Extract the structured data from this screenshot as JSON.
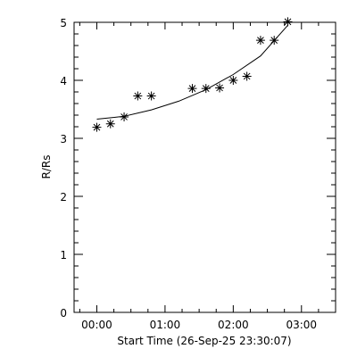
{
  "chart_data": {
    "type": "scatter",
    "xlabel": "Start Time (26-Sep-25 23:30:07)",
    "ylabel": "R/Rs",
    "x_unit": "minutes",
    "xlim": [
      -20,
      210
    ],
    "ylim": [
      0,
      5
    ],
    "x_ticks": [
      {
        "value": 0,
        "label": "00:00"
      },
      {
        "value": 60,
        "label": "01:00"
      },
      {
        "value": 120,
        "label": "02:00"
      },
      {
        "value": 180,
        "label": "03:00"
      }
    ],
    "y_ticks": [
      {
        "value": 0,
        "label": "0"
      },
      {
        "value": 1,
        "label": "1"
      },
      {
        "value": 2,
        "label": "2"
      },
      {
        "value": 3,
        "label": "3"
      },
      {
        "value": 4,
        "label": "4"
      },
      {
        "value": 5,
        "label": "5"
      }
    ],
    "grid": false,
    "series": [
      {
        "marker": "asterisk",
        "points": [
          {
            "x": 0,
            "y": 3.19
          },
          {
            "x": 12,
            "y": 3.25
          },
          {
            "x": 24,
            "y": 3.37
          },
          {
            "x": 36,
            "y": 3.73
          },
          {
            "x": 48,
            "y": 3.73
          },
          {
            "x": 84,
            "y": 3.86
          },
          {
            "x": 96,
            "y": 3.86
          },
          {
            "x": 108,
            "y": 3.87
          },
          {
            "x": 120,
            "y": 4.0
          },
          {
            "x": 132,
            "y": 4.07
          },
          {
            "x": 144,
            "y": 4.69
          },
          {
            "x": 156,
            "y": 4.69
          },
          {
            "x": 168,
            "y": 5.01
          }
        ]
      },
      {
        "style": "line",
        "points": [
          {
            "x": 0,
            "y": 3.33
          },
          {
            "x": 24,
            "y": 3.38
          },
          {
            "x": 48,
            "y": 3.49
          },
          {
            "x": 72,
            "y": 3.64
          },
          {
            "x": 96,
            "y": 3.84
          },
          {
            "x": 120,
            "y": 4.1
          },
          {
            "x": 144,
            "y": 4.42
          },
          {
            "x": 168,
            "y": 4.95
          }
        ]
      }
    ]
  }
}
